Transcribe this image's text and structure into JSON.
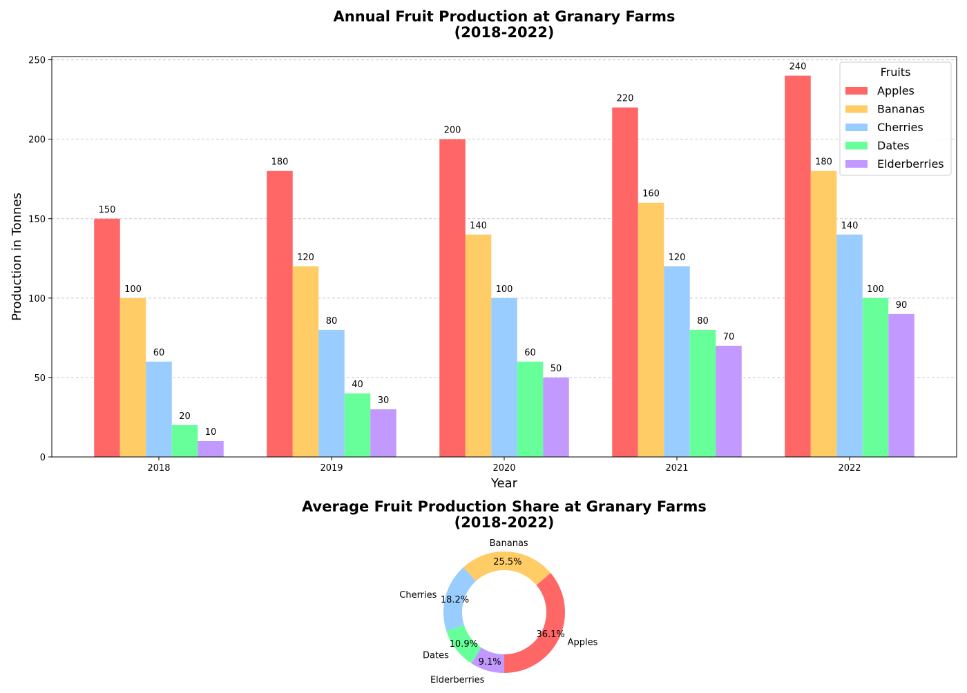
{
  "chart_data": [
    {
      "type": "bar",
      "title": "Annual Fruit Production at Granary Farms\n(2018-2022)",
      "xlabel": "Year",
      "ylabel": "Production in Tonnes",
      "ylim": [
        0,
        252
      ],
      "yticks": [
        0,
        50,
        100,
        150,
        200,
        250
      ],
      "grid": "y dashed",
      "categories": [
        "2018",
        "2019",
        "2020",
        "2021",
        "2022"
      ],
      "legend": {
        "title": "Fruits",
        "placement": "top-right"
      },
      "series": [
        {
          "name": "Apples",
          "color": "#ff6666",
          "values": [
            150,
            180,
            200,
            220,
            240
          ]
        },
        {
          "name": "Bananas",
          "color": "#ffcc66",
          "values": [
            100,
            120,
            140,
            160,
            180
          ]
        },
        {
          "name": "Cherries",
          "color": "#99ccff",
          "values": [
            60,
            80,
            100,
            120,
            140
          ]
        },
        {
          "name": "Dates",
          "color": "#66ff99",
          "values": [
            20,
            40,
            60,
            80,
            100
          ]
        },
        {
          "name": "Elderberries",
          "color": "#c299ff",
          "values": [
            10,
            30,
            50,
            70,
            90
          ]
        }
      ]
    },
    {
      "type": "pie",
      "style": "donut",
      "title": "Average Fruit Production Share at Granary Farms\n(2018-2022)",
      "slices": [
        {
          "label": "Apples",
          "pct": "36.1%",
          "value": 36.1,
          "color": "#ff6666"
        },
        {
          "label": "Bananas",
          "pct": "25.5%",
          "value": 25.5,
          "color": "#ffcc66"
        },
        {
          "label": "Cherries",
          "pct": "18.2%",
          "value": 18.2,
          "color": "#99ccff"
        },
        {
          "label": "Dates",
          "pct": "10.9%",
          "value": 10.9,
          "color": "#66ff99"
        },
        {
          "label": "Elderberries",
          "pct": "9.1%",
          "value": 9.1,
          "color": "#c299ff"
        }
      ]
    }
  ]
}
